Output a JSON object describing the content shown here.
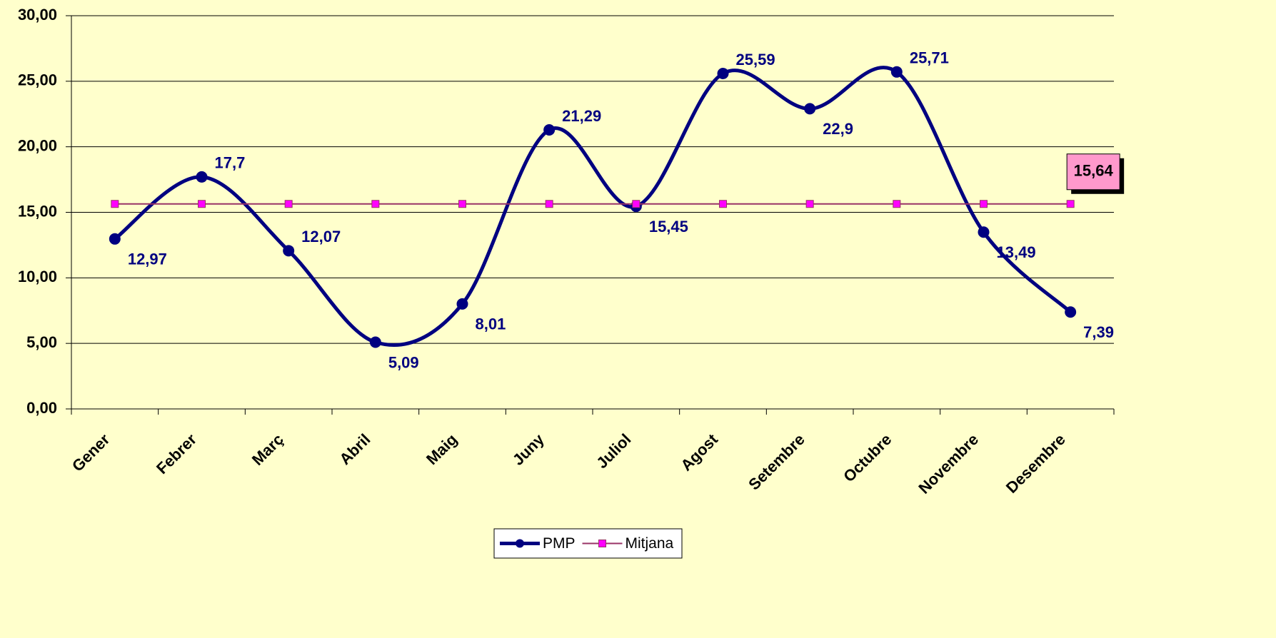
{
  "chart_data": {
    "type": "line",
    "categories": [
      "Gener",
      "Febrer",
      "Març",
      "Abril",
      "Maig",
      "Juny",
      "Juliol",
      "Agost",
      "Setembre",
      "Octubre",
      "Novembre",
      "Desembre"
    ],
    "series": [
      {
        "name": "PMP",
        "color": "#000080",
        "values": [
          12.97,
          17.7,
          12.07,
          5.09,
          8.01,
          21.29,
          15.45,
          25.59,
          22.9,
          25.71,
          13.49,
          7.39
        ],
        "value_labels": [
          "12,97",
          "17,7",
          "12,07",
          "5,09",
          "8,01",
          "21,29",
          "15,45",
          "25,59",
          "22,9",
          "25,71",
          "13,49",
          "7,39"
        ]
      },
      {
        "name": "Mitjana",
        "color": "#993366",
        "values": [
          15.64,
          15.64,
          15.64,
          15.64,
          15.64,
          15.64,
          15.64,
          15.64,
          15.64,
          15.64,
          15.64,
          15.64
        ],
        "value_labels": [
          null,
          null,
          null,
          null,
          null,
          null,
          null,
          null,
          null,
          null,
          null,
          "15,64"
        ]
      }
    ],
    "ylim": [
      0,
      30
    ],
    "yticks": [
      {
        "value": 0,
        "label": "0,00"
      },
      {
        "value": 5,
        "label": "5,00"
      },
      {
        "value": 10,
        "label": "10,00"
      },
      {
        "value": 15,
        "label": "15,00"
      },
      {
        "value": 20,
        "label": "20,00"
      },
      {
        "value": 25,
        "label": "25,00"
      },
      {
        "value": 30,
        "label": "30,00"
      }
    ],
    "grid": true,
    "legend": "bottom"
  }
}
